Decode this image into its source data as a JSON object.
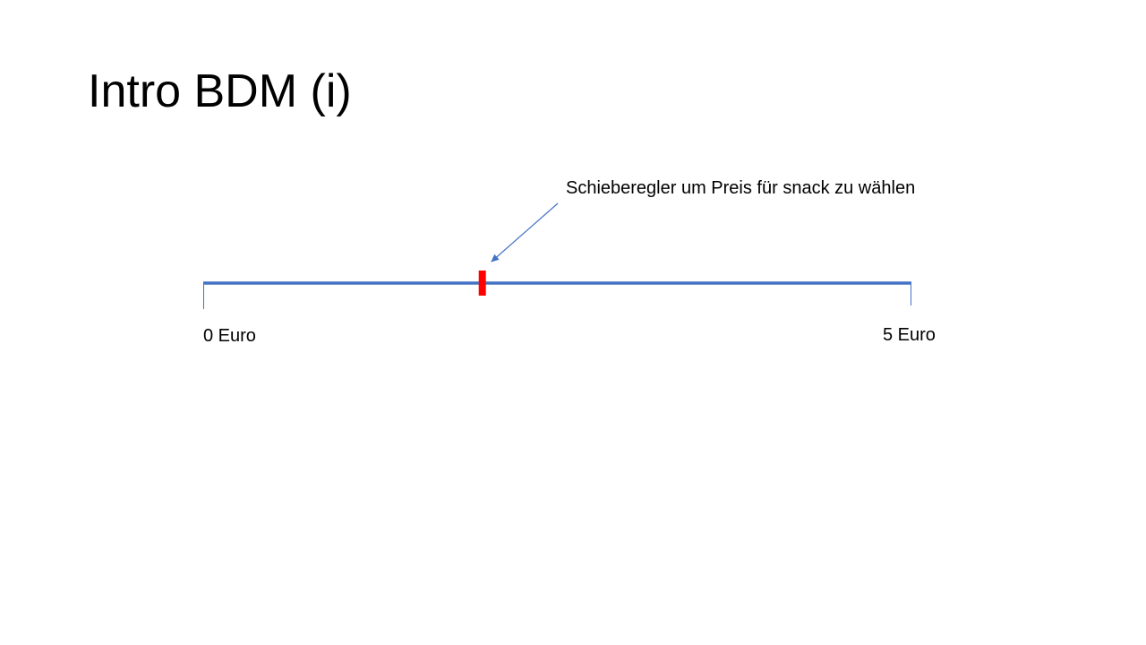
{
  "slide": {
    "title": "Intro BDM (i)"
  },
  "slider": {
    "annotation": "Schieberegler um Preis für snack zu wählen",
    "min_label": "0 Euro",
    "max_label": "5 Euro",
    "min_value": 0,
    "max_value": 5,
    "thumb_value": 1.97
  },
  "colors": {
    "track": "#4472C4",
    "thumb": "#FF0000",
    "arrow": "#4472C4",
    "text": "#000000"
  }
}
